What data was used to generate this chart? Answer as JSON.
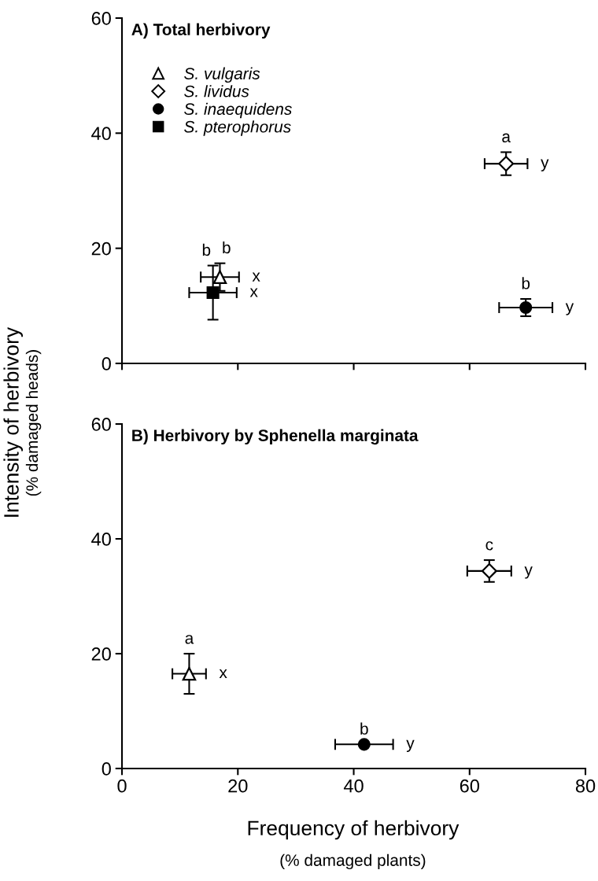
{
  "chart_data": [
    {
      "type": "scatter",
      "title": "A) Total herbivory",
      "ylabel": "Intensity of herbivory\n(% damaged heads)",
      "xlim": [
        0,
        80
      ],
      "xticks": [
        0,
        20,
        40,
        60,
        80
      ],
      "ylim": [
        0,
        60
      ],
      "yticks": [
        0,
        20,
        40,
        60
      ],
      "tick_labels": "y",
      "grid": false,
      "legend": "top left",
      "series": [
        {
          "name": "S. vulgaris",
          "marker": "triangle",
          "color": "#ffffff",
          "x": [
            16.9
          ],
          "values": [
            15.0
          ],
          "errors": [
            2.4
          ],
          "xerrors": [
            3.3
          ]
        },
        {
          "name": "S. lividus",
          "marker": "diamond",
          "color": "#ffffff",
          "x": [
            66.3
          ],
          "values": [
            34.7
          ],
          "errors": [
            2.0
          ],
          "xerrors": [
            3.7
          ]
        },
        {
          "name": "S. inaequidens",
          "marker": "circle",
          "color": "#000000",
          "x": [
            69.7
          ],
          "values": [
            9.7
          ],
          "errors": [
            1.5
          ],
          "xerrors": [
            4.6
          ]
        },
        {
          "name": "S. pterophorus",
          "marker": "square",
          "color": "#000000",
          "x": [
            15.7
          ],
          "values": [
            12.3
          ],
          "errors": [
            4.7
          ],
          "xerrors": [
            4.1
          ]
        }
      ],
      "annotations": [
        {
          "text": "b",
          "x": 15.7,
          "y": 12.3
        },
        {
          "text": "x",
          "x": 15.7,
          "y": 12.3
        },
        {
          "text": "b",
          "x": 16.9,
          "y": 15.0
        },
        {
          "text": "x",
          "x": 16.9,
          "y": 15.0
        },
        {
          "text": "a",
          "x": 66.3,
          "y": 34.7
        },
        {
          "text": "y",
          "x": 66.3,
          "y": 34.7
        },
        {
          "text": "b",
          "x": 69.7,
          "y": 9.7
        },
        {
          "text": "y",
          "x": 69.7,
          "y": 9.7
        }
      ]
    },
    {
      "type": "scatter",
      "title": "B) Herbivory by Sphenella marginata",
      "xlabel": "Frequency of herbivory\n(% damaged plants)",
      "xlim": [
        0,
        80
      ],
      "xticks": [
        0,
        20,
        40,
        60,
        80
      ],
      "ylim": [
        0,
        60
      ],
      "yticks": [
        0,
        20,
        40,
        60
      ],
      "grid": false,
      "series": [
        {
          "marker": "triangle",
          "color": "#ffffff",
          "x": [
            11.6
          ],
          "values": [
            16.5
          ],
          "errors": [
            3.5
          ],
          "xerrors": [
            2.9
          ]
        },
        {
          "marker": "diamond",
          "color": "#ffffff",
          "x": [
            63.4
          ],
          "values": [
            34.4
          ],
          "errors": [
            1.9
          ],
          "xerrors": [
            3.8
          ]
        },
        {
          "marker": "circle",
          "color": "#000000",
          "x": [
            41.8
          ],
          "values": [
            4.2
          ],
          "errors": [
            null
          ],
          "xerrors": [
            5.0
          ]
        }
      ],
      "annotations": [
        {
          "text": "a",
          "x": 11.6,
          "y": 16.5
        },
        {
          "text": "x",
          "x": 11.6,
          "y": 16.5
        },
        {
          "text": "b",
          "x": 41.8,
          "y": 4.2
        },
        {
          "text": "y",
          "x": 41.8,
          "y": 4.2
        },
        {
          "text": "c",
          "x": 63.4,
          "y": 34.4
        },
        {
          "text": "y",
          "x": 63.4,
          "y": 34.4
        }
      ]
    }
  ]
}
